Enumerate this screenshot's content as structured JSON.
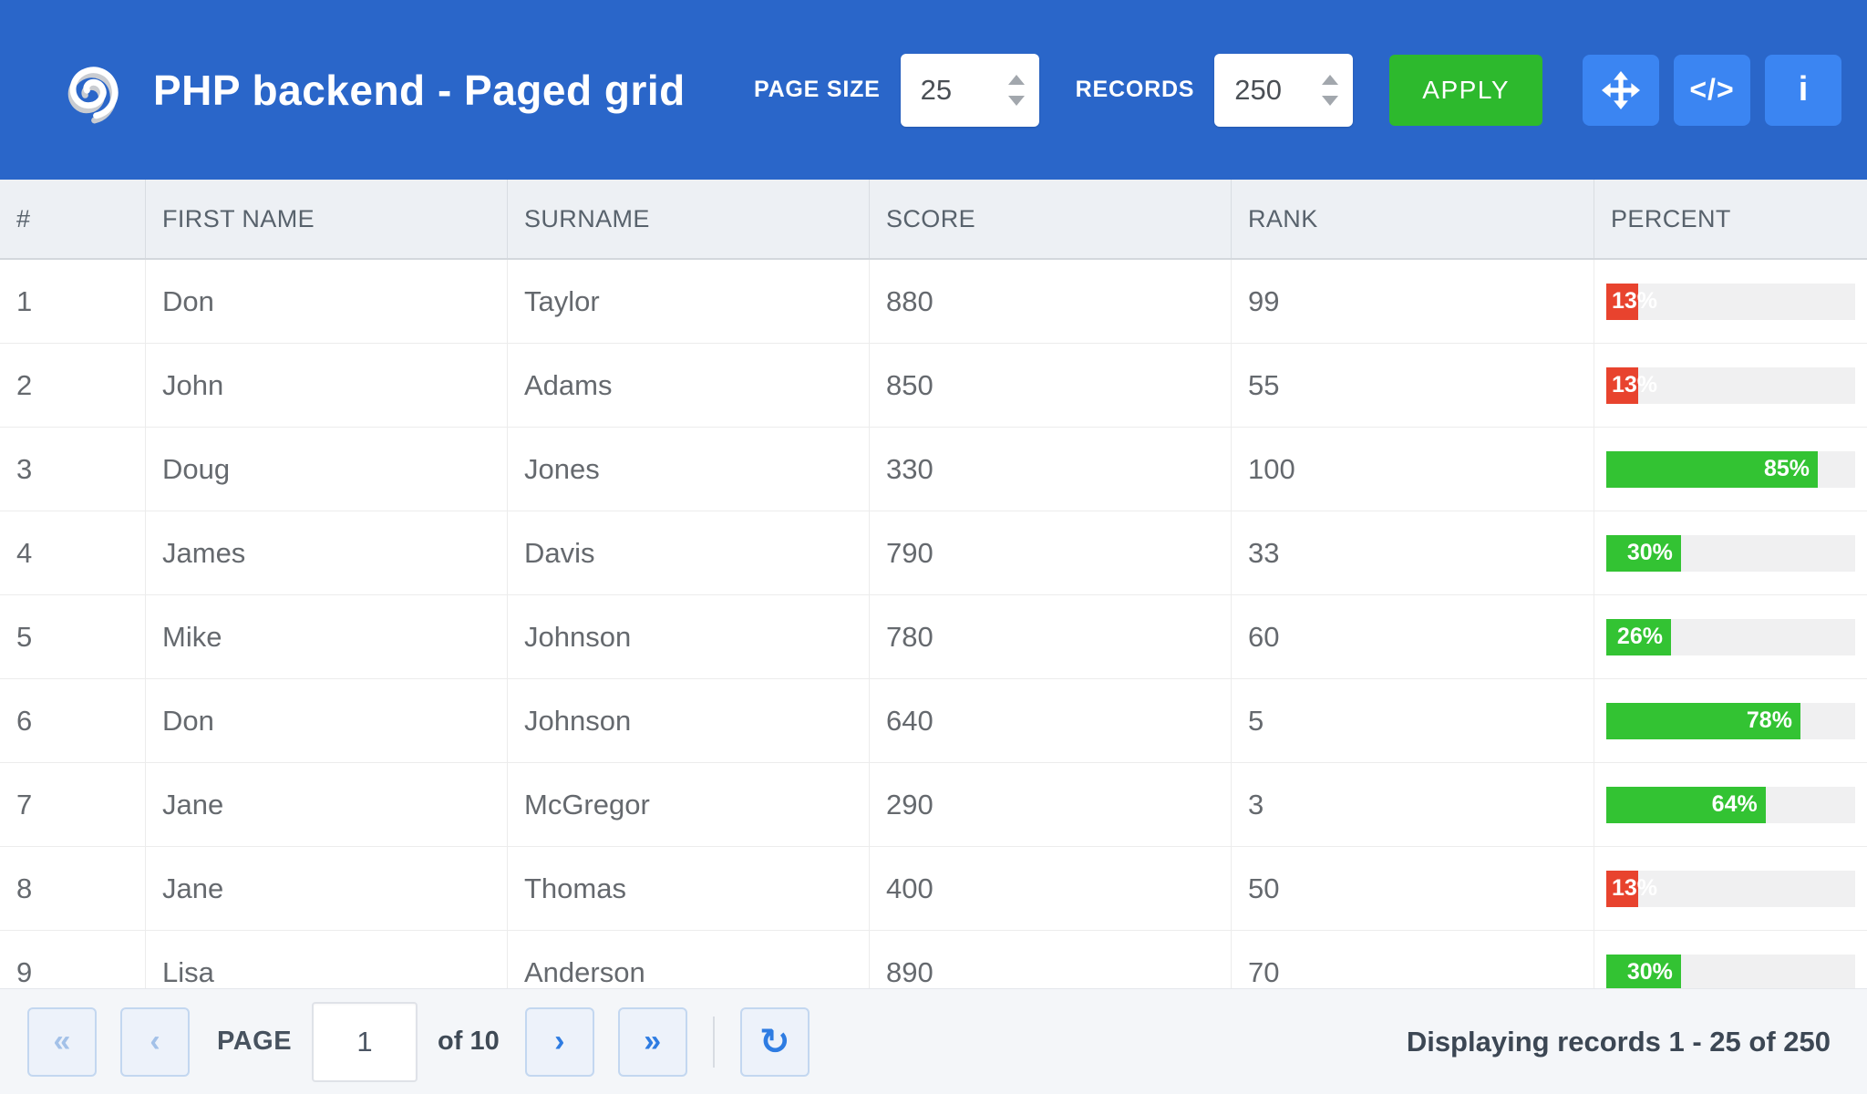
{
  "toolbar": {
    "title": "PHP backend - Paged grid",
    "page_size_label": "PAGE SIZE",
    "page_size_value": "25",
    "records_label": "RECORDS",
    "records_value": "250",
    "apply_label": "APPLY",
    "code_glyph": "</>",
    "info_glyph": "i"
  },
  "colors": {
    "toolbar_blue": "#2a66c9",
    "icon_button_blue": "#3b85f2",
    "apply_green": "#2db92d",
    "bar_green": "#33c333",
    "bar_red": "#e8432e",
    "footer_accent_blue": "#2e7ce2",
    "header_row_gray": "#edf0f4",
    "footer_gray": "#f4f6f9"
  },
  "table": {
    "columns": [
      {
        "label": "#"
      },
      {
        "label": "FIRST NAME"
      },
      {
        "label": "SURNAME"
      },
      {
        "label": "SCORE"
      },
      {
        "label": "RANK"
      },
      {
        "label": "PERCENT"
      }
    ],
    "rows": [
      {
        "num": "1",
        "first_name": "Don",
        "surname": "Taylor",
        "score": "880",
        "rank": "99",
        "percent": 13,
        "percent_label": "13%",
        "bar_color": "red"
      },
      {
        "num": "2",
        "first_name": "John",
        "surname": "Adams",
        "score": "850",
        "rank": "55",
        "percent": 13,
        "percent_label": "13%",
        "bar_color": "red"
      },
      {
        "num": "3",
        "first_name": "Doug",
        "surname": "Jones",
        "score": "330",
        "rank": "100",
        "percent": 85,
        "percent_label": "85%",
        "bar_color": "green"
      },
      {
        "num": "4",
        "first_name": "James",
        "surname": "Davis",
        "score": "790",
        "rank": "33",
        "percent": 30,
        "percent_label": "30%",
        "bar_color": "green"
      },
      {
        "num": "5",
        "first_name": "Mike",
        "surname": "Johnson",
        "score": "780",
        "rank": "60",
        "percent": 26,
        "percent_label": "26%",
        "bar_color": "green"
      },
      {
        "num": "6",
        "first_name": "Don",
        "surname": "Johnson",
        "score": "640",
        "rank": "5",
        "percent": 78,
        "percent_label": "78%",
        "bar_color": "green"
      },
      {
        "num": "7",
        "first_name": "Jane",
        "surname": "McGregor",
        "score": "290",
        "rank": "3",
        "percent": 64,
        "percent_label": "64%",
        "bar_color": "green"
      },
      {
        "num": "8",
        "first_name": "Jane",
        "surname": "Thomas",
        "score": "400",
        "rank": "50",
        "percent": 13,
        "percent_label": "13%",
        "bar_color": "red"
      },
      {
        "num": "9",
        "first_name": "Lisa",
        "surname": "Anderson",
        "score": "890",
        "rank": "70",
        "percent": 30,
        "percent_label": "30%",
        "bar_color": "green"
      }
    ]
  },
  "footer": {
    "first_glyph": "«",
    "prev_glyph": "‹",
    "page_label": "PAGE",
    "page_value": "1",
    "of_label": "of 10",
    "next_glyph": "›",
    "last_glyph": "»",
    "refresh_glyph": "↻",
    "status": "Displaying records 1 - 25 of 250"
  }
}
